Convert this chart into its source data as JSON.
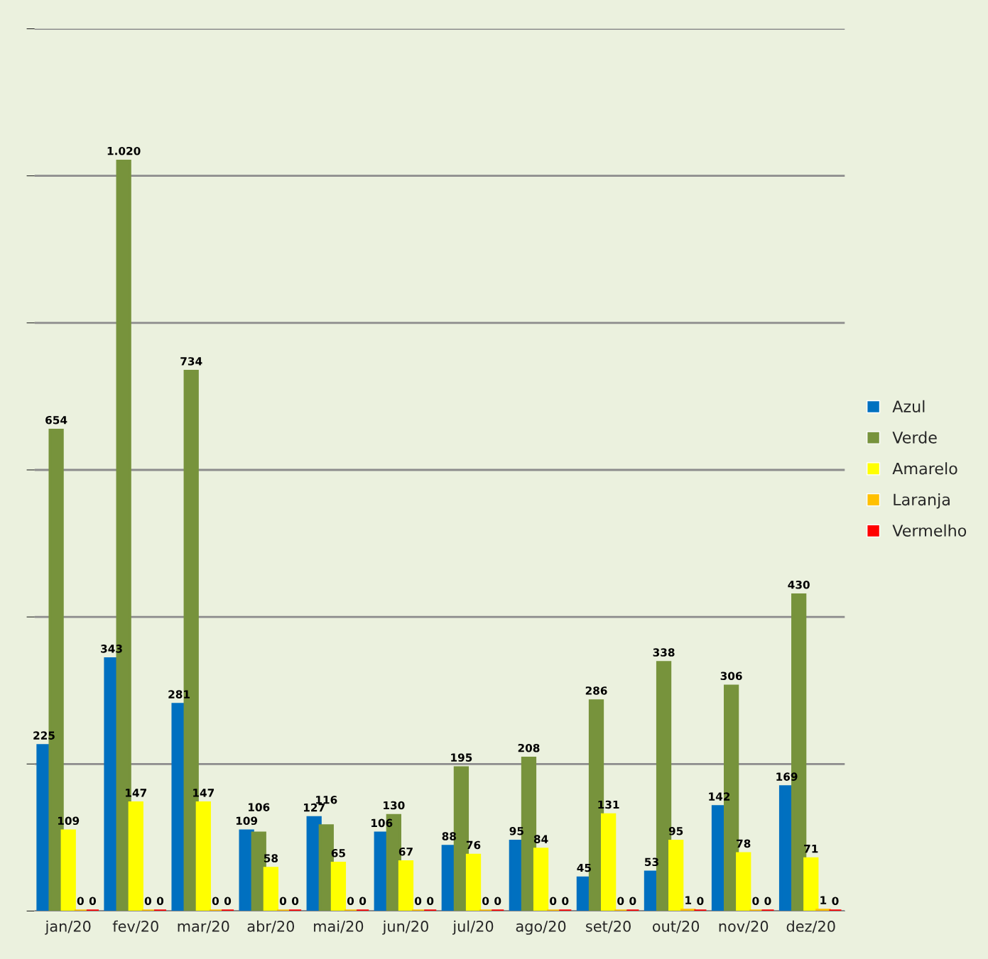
{
  "chart_data": {
    "type": "bar",
    "categories": [
      "jan/20",
      "fev/20",
      "mar/20",
      "abr/20",
      "mai/20",
      "jun/20",
      "jul/20",
      "ago/20",
      "set/20",
      "out/20",
      "nov/20",
      "dez/20"
    ],
    "series": [
      {
        "name": "Azul",
        "color": "#0070c0",
        "values": [
          225,
          343,
          281,
          109,
          127,
          106,
          88,
          95,
          45,
          53,
          142,
          169
        ]
      },
      {
        "name": "Verde",
        "color": "#77933c",
        "values": [
          654,
          1020,
          734,
          106,
          116,
          130,
          195,
          208,
          286,
          338,
          306,
          430
        ],
        "value_labels": [
          "654",
          "1.020",
          "734",
          "106",
          "116",
          "130",
          "195",
          "208",
          "286",
          "338",
          "306",
          "430"
        ]
      },
      {
        "name": "Amarelo",
        "color": "#ffff00",
        "values": [
          109,
          147,
          147,
          58,
          65,
          67,
          76,
          84,
          131,
          95,
          78,
          71
        ]
      },
      {
        "name": "Laranja",
        "color": "#ffc000",
        "values": [
          0,
          0,
          0,
          0,
          0,
          0,
          0,
          0,
          0,
          1,
          0,
          1
        ]
      },
      {
        "name": "Vermelho",
        "color": "#ff0000",
        "values": [
          0,
          0,
          0,
          0,
          0,
          0,
          0,
          0,
          0,
          0,
          0,
          0
        ]
      }
    ],
    "ylim": [
      0,
      1200
    ],
    "yticks": [
      {
        "value": 0,
        "label": null
      },
      {
        "value": 200,
        "label": null
      },
      {
        "value": 400,
        "label": null
      },
      {
        "value": 600,
        "label": null
      },
      {
        "value": 800,
        "label": null
      },
      {
        "value": 1000,
        "label": null
      },
      {
        "value": 1200,
        "label": null
      }
    ],
    "tick_labels": "x",
    "grid": "y",
    "legend": "right",
    "data_labels": true
  }
}
